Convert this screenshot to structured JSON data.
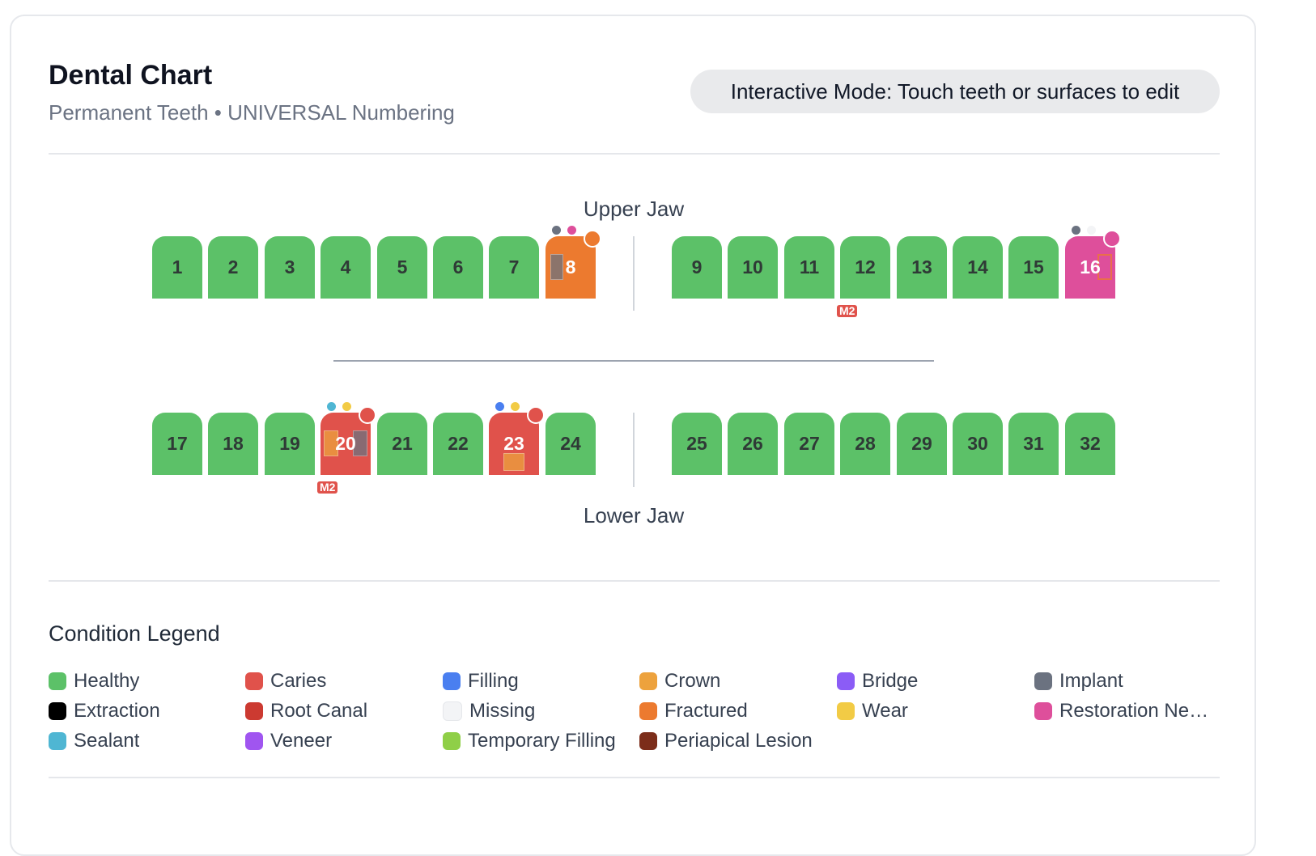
{
  "header": {
    "title": "Dental Chart",
    "subtitle": "Permanent Teeth • UNIVERSAL Numbering",
    "mode_hint": "Interactive Mode: Touch teeth or surfaces to edit"
  },
  "jaws": {
    "upper_label": "Upper Jaw",
    "lower_label": "Lower Jaw"
  },
  "colors": {
    "healthy": "#5cc168",
    "caries": "#e0524b",
    "filling": "#4a7ff0",
    "crown": "#eda23d",
    "bridge": "#8b5cf6",
    "implant": "#6b7280",
    "extraction": "#000000",
    "root_canal": "#cc3a31",
    "missing": "#f3f4f6",
    "fractured": "#ec7a2f",
    "wear": "#f2cb45",
    "restoration": "#de4f9b",
    "sealant": "#4fb6d3",
    "veneer": "#a055f0",
    "temporary_filling": "#8fcf47",
    "periapical_lesion": "#7c2d1a"
  },
  "upper_teeth": [
    {
      "number": "1",
      "condition": "healthy"
    },
    {
      "number": "2",
      "condition": "healthy"
    },
    {
      "number": "3",
      "condition": "healthy"
    },
    {
      "number": "4",
      "condition": "healthy"
    },
    {
      "number": "5",
      "condition": "healthy"
    },
    {
      "number": "6",
      "condition": "healthy"
    },
    {
      "number": "7",
      "condition": "healthy"
    },
    {
      "number": "8",
      "condition": "fractured",
      "badge": "fractured",
      "dots": [
        "implant",
        "restoration"
      ],
      "surfaces": [
        "implant"
      ]
    },
    {
      "number": "9",
      "condition": "healthy"
    },
    {
      "number": "10",
      "condition": "healthy"
    },
    {
      "number": "11",
      "condition": "healthy"
    },
    {
      "number": "12",
      "condition": "healthy",
      "tag": "M2"
    },
    {
      "number": "13",
      "condition": "healthy"
    },
    {
      "number": "14",
      "condition": "healthy"
    },
    {
      "number": "15",
      "condition": "healthy"
    },
    {
      "number": "16",
      "condition": "restoration",
      "badge": "restoration",
      "dots": [
        "implant",
        "missing"
      ],
      "surfaces": [
        "fractured"
      ]
    }
  ],
  "lower_teeth": [
    {
      "number": "17",
      "condition": "healthy"
    },
    {
      "number": "18",
      "condition": "healthy"
    },
    {
      "number": "19",
      "condition": "healthy"
    },
    {
      "number": "20",
      "condition": "caries",
      "badge": "caries",
      "dots": [
        "sealant",
        "wear"
      ],
      "surfaces": [
        "crown",
        "implant"
      ],
      "tag": "M2"
    },
    {
      "number": "21",
      "condition": "healthy"
    },
    {
      "number": "22",
      "condition": "healthy"
    },
    {
      "number": "23",
      "condition": "caries",
      "badge": "caries",
      "dots": [
        "filling",
        "wear"
      ],
      "surfaces": [
        "crown"
      ]
    },
    {
      "number": "24",
      "condition": "healthy"
    },
    {
      "number": "25",
      "condition": "healthy"
    },
    {
      "number": "26",
      "condition": "healthy"
    },
    {
      "number": "27",
      "condition": "healthy"
    },
    {
      "number": "28",
      "condition": "healthy"
    },
    {
      "number": "29",
      "condition": "healthy"
    },
    {
      "number": "30",
      "condition": "healthy"
    },
    {
      "number": "31",
      "condition": "healthy"
    },
    {
      "number": "32",
      "condition": "healthy"
    }
  ],
  "legend": {
    "title": "Condition Legend",
    "items": [
      {
        "label": "Healthy",
        "key": "healthy"
      },
      {
        "label": "Caries",
        "key": "caries"
      },
      {
        "label": "Filling",
        "key": "filling"
      },
      {
        "label": "Crown",
        "key": "crown"
      },
      {
        "label": "Bridge",
        "key": "bridge"
      },
      {
        "label": "Implant",
        "key": "implant"
      },
      {
        "label": "Extraction",
        "key": "extraction"
      },
      {
        "label": "Root Canal",
        "key": "root_canal"
      },
      {
        "label": "Missing",
        "key": "missing"
      },
      {
        "label": "Fractured",
        "key": "fractured"
      },
      {
        "label": "Wear",
        "key": "wear"
      },
      {
        "label": "Restoration Needed",
        "key": "restoration"
      },
      {
        "label": "Sealant",
        "key": "sealant"
      },
      {
        "label": "Veneer",
        "key": "veneer"
      },
      {
        "label": "Temporary Filling",
        "key": "temporary_filling"
      },
      {
        "label": "Periapical Lesion",
        "key": "periapical_lesion"
      }
    ]
  }
}
